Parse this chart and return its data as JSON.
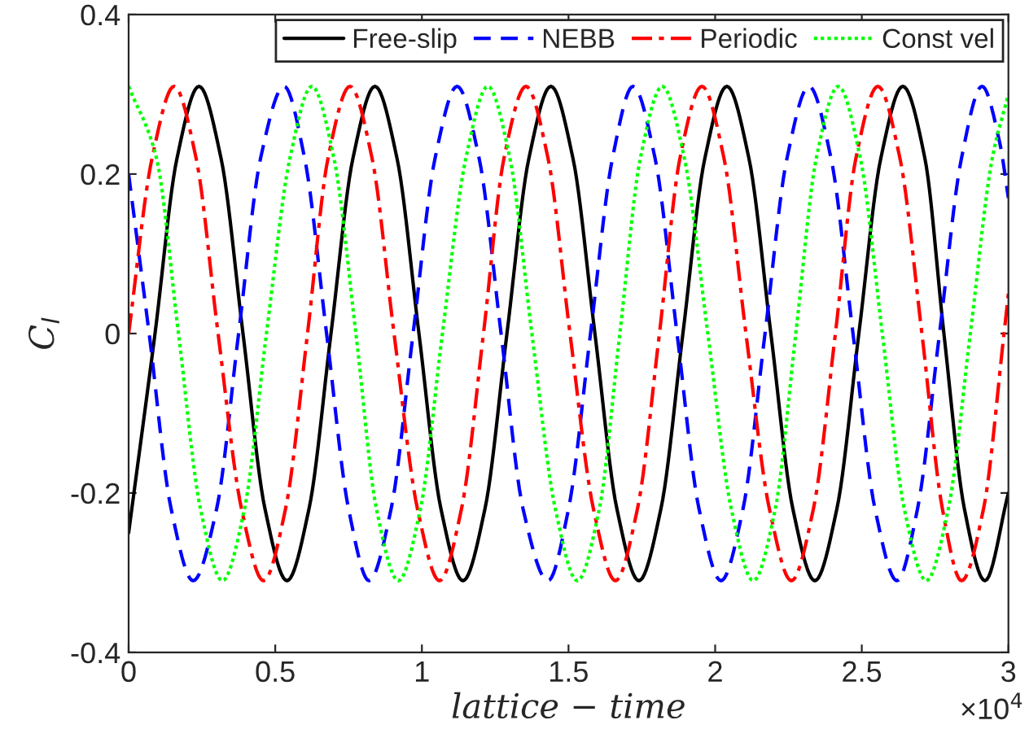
{
  "chart_data": {
    "type": "line",
    "xlabel": "lattice − time",
    "ylabel": "C$_{l}$",
    "annotations": [
      "×10$^{4}$"
    ],
    "xlim": [
      0,
      3
    ],
    "ylim": [
      -0.4,
      0.4
    ],
    "xticks": [
      0,
      0.5,
      1,
      1.5,
      2,
      2.5,
      3
    ],
    "yticks": [
      -0.4,
      -0.2,
      0,
      0.2,
      0.4
    ],
    "grid": false,
    "legend": "top right",
    "marker": "none",
    "series": [
      {
        "name": "Free-slip",
        "color": "#000000",
        "line_style": "solid",
        "x": [
          0,
          0.09,
          0.165,
          0.24,
          0.315,
          0.39,
          0.465,
          0.54,
          0.615,
          0.69,
          0.765,
          0.84,
          0.915,
          0.99,
          1.065,
          1.14,
          1.215,
          1.29,
          1.365,
          1.44,
          1.515,
          1.59,
          1.665,
          1.74,
          1.815,
          1.89,
          1.965,
          2.04,
          2.115,
          2.19,
          2.265,
          2.34,
          2.415,
          2.49,
          2.565,
          2.64,
          2.715,
          2.78,
          2.85,
          2.92,
          3
        ],
        "values": [
          -0.25,
          0,
          0.22,
          0.31,
          0.22,
          0,
          -0.22,
          -0.31,
          -0.22,
          0,
          0.22,
          0.31,
          0.22,
          0,
          -0.22,
          -0.31,
          -0.22,
          0,
          0.22,
          0.31,
          0.22,
          0,
          -0.22,
          -0.31,
          -0.22,
          0,
          0.22,
          0.31,
          0.22,
          0,
          -0.22,
          -0.31,
          -0.22,
          0,
          0.22,
          0.31,
          0.22,
          0,
          -0.22,
          -0.31,
          -0.2
        ]
      },
      {
        "name": "NEBB",
        "color": "#0000ff",
        "line_style": "dashed",
        "x": [
          0,
          0.07,
          0.145,
          0.22,
          0.3,
          0.375,
          0.45,
          0.53,
          0.6,
          0.675,
          0.75,
          0.82,
          0.895,
          0.97,
          1.045,
          1.12,
          1.195,
          1.27,
          1.345,
          1.43,
          1.5,
          1.575,
          1.65,
          1.72,
          1.795,
          1.87,
          1.945,
          2.02,
          2.095,
          2.17,
          2.245,
          2.32,
          2.395,
          2.47,
          2.545,
          2.62,
          2.69,
          2.765,
          2.84,
          2.91,
          2.97,
          3
        ],
        "values": [
          0.2,
          0,
          -0.22,
          -0.31,
          -0.22,
          0,
          0.22,
          0.31,
          0.22,
          0,
          -0.22,
          -0.31,
          -0.22,
          0,
          0.22,
          0.31,
          0.22,
          0,
          -0.22,
          -0.31,
          -0.22,
          0,
          0.22,
          0.31,
          0.22,
          0,
          -0.22,
          -0.31,
          -0.22,
          0,
          0.22,
          0.31,
          0.22,
          0,
          -0.22,
          -0.31,
          -0.22,
          0,
          0.22,
          0.31,
          0.24,
          0.17
        ]
      },
      {
        "name": "Periodic",
        "color": "#ff0000",
        "line_style": "dashdot",
        "x": [
          0,
          0.08,
          0.155,
          0.23,
          0.305,
          0.385,
          0.46,
          0.535,
          0.61,
          0.68,
          0.755,
          0.83,
          0.905,
          0.985,
          1.06,
          1.135,
          1.21,
          1.28,
          1.355,
          1.43,
          1.505,
          1.585,
          1.66,
          1.735,
          1.81,
          1.88,
          1.955,
          2.03,
          2.105,
          2.185,
          2.26,
          2.335,
          2.41,
          2.48,
          2.555,
          2.63,
          2.705,
          2.775,
          2.84,
          2.915,
          2.985,
          3
        ],
        "values": [
          0,
          0.22,
          0.31,
          0.22,
          0,
          -0.22,
          -0.31,
          -0.22,
          0,
          0.22,
          0.31,
          0.22,
          0,
          -0.22,
          -0.31,
          -0.22,
          0,
          0.22,
          0.31,
          0.22,
          0,
          -0.22,
          -0.31,
          -0.22,
          0,
          0.22,
          0.31,
          0.22,
          0,
          -0.22,
          -0.31,
          -0.22,
          0,
          0.22,
          0.31,
          0.22,
          0,
          -0.22,
          -0.31,
          -0.22,
          0,
          0.05
        ]
      },
      {
        "name": "Const vel",
        "color": "#00ff00",
        "line_style": "dotted",
        "x": [
          0,
          0.095,
          0.17,
          0.245,
          0.32,
          0.395,
          0.47,
          0.55,
          0.625,
          0.7,
          0.775,
          0.845,
          0.92,
          0.995,
          1.07,
          1.15,
          1.225,
          1.3,
          1.375,
          1.455,
          1.53,
          1.605,
          1.675,
          1.745,
          1.82,
          1.895,
          1.975,
          2.055,
          2.13,
          2.205,
          2.275,
          2.345,
          2.42,
          2.495,
          2.57,
          2.645,
          2.72,
          2.795,
          2.87,
          2.945,
          3
        ],
        "values": [
          0.31,
          0.22,
          0,
          -0.22,
          -0.31,
          -0.22,
          0,
          0.22,
          0.31,
          0.22,
          0,
          -0.22,
          -0.31,
          -0.22,
          0,
          0.22,
          0.31,
          0.22,
          0,
          -0.22,
          -0.31,
          -0.22,
          0,
          0.22,
          0.31,
          0.22,
          0,
          -0.22,
          -0.31,
          -0.22,
          0,
          0.22,
          0.31,
          0.22,
          0,
          -0.22,
          -0.31,
          -0.22,
          0,
          0.22,
          0.3
        ]
      }
    ]
  }
}
